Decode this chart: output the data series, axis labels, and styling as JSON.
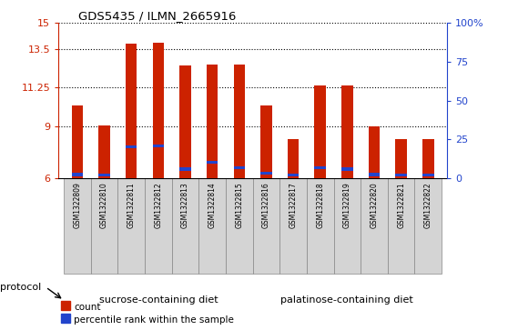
{
  "title": "GDS5435 / ILMN_2665916",
  "samples": [
    "GSM1322809",
    "GSM1322810",
    "GSM1322811",
    "GSM1322812",
    "GSM1322813",
    "GSM1322814",
    "GSM1322815",
    "GSM1322816",
    "GSM1322817",
    "GSM1322818",
    "GSM1322819",
    "GSM1322820",
    "GSM1322821",
    "GSM1322822"
  ],
  "count_values": [
    10.2,
    9.05,
    13.82,
    13.88,
    12.55,
    12.62,
    12.62,
    10.2,
    8.28,
    11.4,
    11.38,
    9.0,
    8.28,
    8.28
  ],
  "percentile_values": [
    6.22,
    6.18,
    7.82,
    7.88,
    6.52,
    6.92,
    6.62,
    6.28,
    6.18,
    6.62,
    6.52,
    6.22,
    6.18,
    6.18
  ],
  "ymin": 6,
  "ymax": 15,
  "yticks_left": [
    6,
    9,
    11.25,
    13.5,
    15
  ],
  "yticks_left_labels": [
    "6",
    "9",
    "11.25",
    "13.5",
    "15"
  ],
  "yticks_right_pcts": [
    0,
    25,
    50,
    75,
    100
  ],
  "yticks_right_labels": [
    "0",
    "25",
    "50",
    "75",
    "100%"
  ],
  "bar_color": "#cc2200",
  "blue_color": "#2244cc",
  "group1_label": "sucrose-containing diet",
  "group2_label": "palatinose-containing diet",
  "group1_count": 7,
  "protocol_label": "protocol",
  "legend_count": "count",
  "legend_percentile": "percentile rank within the sample",
  "bar_width": 0.42,
  "blue_bar_height": 0.18,
  "xtick_bg": "#d4d4d4",
  "group_bg": "#77dd77",
  "group_border": "#000000"
}
